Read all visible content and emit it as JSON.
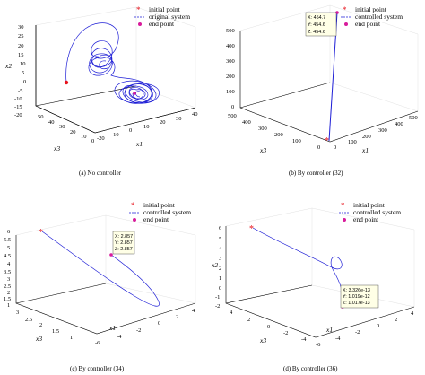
{
  "colors": {
    "trajectory": "#1f1fd6",
    "start_marker": "#e8121b",
    "end_marker": "#d81b9c",
    "grid": "#d9d9d9",
    "tooltip_bg": "#ffffe6"
  },
  "chart_data": [
    {
      "type": "line",
      "caption": "(a)  No controller",
      "xlabel": "x1",
      "ylabel": "x3",
      "zlabel": "x2",
      "x_ticks": [
        "-20",
        "-10",
        "0",
        "10",
        "20",
        "30",
        "40"
      ],
      "y_ticks": [
        "0",
        "10",
        "20",
        "30",
        "40",
        "50"
      ],
      "z_ticks": [
        "-20",
        "-15",
        "-10",
        "-5",
        "0",
        "5",
        "10",
        "15",
        "20",
        "25",
        "30"
      ],
      "legend": [
        "initial point",
        "original system",
        "end point"
      ],
      "series": [
        {
          "name": "original system",
          "pattern": "lorenz-attractor",
          "x_range": [
            -18,
            20
          ],
          "y_range": [
            0,
            48
          ],
          "z_range": [
            -20,
            30
          ]
        }
      ],
      "initial_point": {
        "x1": -5,
        "x3": 40,
        "x2": 5
      },
      "end_point": {
        "x1": 5,
        "x3": 25,
        "x2": -8
      }
    },
    {
      "type": "line",
      "caption": "(b)  By controller (32)",
      "xlabel": "x1",
      "ylabel": "x3",
      "zlabel": "x2",
      "x_ticks": [
        "0",
        "100",
        "200",
        "300",
        "400",
        "500"
      ],
      "y_ticks": [
        "0",
        "100",
        "200",
        "300",
        "400",
        "500"
      ],
      "z_ticks": [
        "0",
        "100",
        "200",
        "300",
        "400",
        "500"
      ],
      "legend": [
        "initial point",
        "controlled system",
        "end point"
      ],
      "series": [
        {
          "name": "controlled system",
          "x": [
            0,
            454.7
          ],
          "y": [
            0,
            454.6
          ],
          "z": [
            0,
            454.6
          ]
        }
      ],
      "tooltip": [
        "X: 454.7",
        "Y: 454.6",
        "Z: 454.6"
      ]
    },
    {
      "type": "line",
      "caption": "(c)  By controller (34)",
      "xlabel": "x1",
      "ylabel": "x3",
      "zlabel": "x2",
      "x_ticks": [
        "-6",
        "-4",
        "-2",
        "0",
        "2",
        "4"
      ],
      "y_ticks": [
        "1",
        "1.5",
        "2",
        "2.5",
        "3"
      ],
      "z_ticks": [
        "1",
        "1.5",
        "2",
        "2.5",
        "3",
        "3.5",
        "4",
        "4.5",
        "5",
        "5.5",
        "6"
      ],
      "legend": [
        "initial point",
        "controlled system",
        "end point"
      ],
      "series": [
        {
          "name": "controlled system",
          "x": [
            -5,
            2.857
          ],
          "y": [
            2.9,
            2.857
          ],
          "z": [
            5.5,
            2.857
          ]
        }
      ],
      "tooltip": [
        "X: 2.857",
        "Y: 2.857",
        "Z: 2.857"
      ]
    },
    {
      "type": "line",
      "caption": "(d)  By controller (36)",
      "xlabel": "x1",
      "ylabel": "x3",
      "zlabel": "x2",
      "x_ticks": [
        "-6",
        "-4",
        "-2",
        "0",
        "2",
        "4"
      ],
      "y_ticks": [
        "-4",
        "-2",
        "0",
        "2",
        "4"
      ],
      "z_ticks": [
        "-2",
        "-1",
        "0",
        "1",
        "2",
        "3",
        "4",
        "5",
        "6"
      ],
      "legend": [
        "initial point",
        "controlled system",
        "end point"
      ],
      "series": [
        {
          "name": "controlled system",
          "x": [
            -5,
            3.326e-13
          ],
          "y": [
            4,
            1.019e-12
          ],
          "z": [
            5.5,
            1.017e-13
          ]
        }
      ],
      "tooltip": [
        "X: 3.326e-13",
        "Y: 1.019e-12",
        "Z: 1.017e-13"
      ]
    }
  ]
}
